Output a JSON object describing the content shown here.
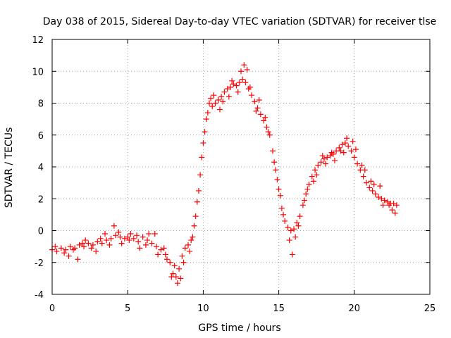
{
  "chart_data": {
    "type": "scatter",
    "title": "Day 038 of 2015, Sidereal Day-to-day VTEC variation (SDTVAR) for receiver tlse",
    "xlabel": "GPS time / hours",
    "ylabel": "SDTVAR / TECUs",
    "xlim": [
      0,
      25
    ],
    "ylim": [
      -4,
      12
    ],
    "xticks": [
      0,
      5,
      10,
      15,
      20,
      25
    ],
    "yticks": [
      -4,
      -2,
      0,
      2,
      4,
      6,
      8,
      10,
      12
    ],
    "grid": true,
    "marker": "+",
    "colors": {
      "marker": "#ff0000",
      "grid": "#a0a0a0",
      "frame": "#000000"
    },
    "series": [
      {
        "name": "tlse",
        "points": [
          [
            0.0,
            -1.2
          ],
          [
            0.3,
            -1.3
          ],
          [
            0.6,
            -1.1
          ],
          [
            0.9,
            -1.2
          ],
          [
            1.2,
            -1.0
          ],
          [
            1.5,
            -1.1
          ],
          [
            1.8,
            -0.9
          ],
          [
            2.1,
            -1.0
          ],
          [
            2.4,
            -0.8
          ],
          [
            2.7,
            -0.9
          ],
          [
            3.0,
            -0.7
          ],
          [
            3.3,
            -0.8
          ],
          [
            3.6,
            -0.6
          ],
          [
            3.9,
            -0.5
          ],
          [
            4.2,
            -0.3
          ],
          [
            4.5,
            -0.4
          ],
          [
            4.8,
            -0.5
          ],
          [
            5.1,
            -0.6
          ],
          [
            5.4,
            -0.5
          ],
          [
            5.7,
            -0.7
          ],
          [
            6.0,
            -0.4
          ],
          [
            6.3,
            -0.6
          ],
          [
            6.6,
            -0.8
          ],
          [
            6.9,
            -1.0
          ],
          [
            7.2,
            -1.2
          ],
          [
            7.5,
            -1.5
          ],
          [
            7.8,
            -2.0
          ],
          [
            8.0,
            -2.7
          ],
          [
            8.2,
            -2.9
          ],
          [
            8.4,
            -2.4
          ],
          [
            8.6,
            -1.6
          ],
          [
            8.8,
            -1.1
          ],
          [
            9.0,
            -0.9
          ],
          [
            9.2,
            -0.6
          ],
          [
            9.4,
            0.3
          ],
          [
            9.6,
            1.8
          ],
          [
            9.8,
            3.5
          ],
          [
            10.0,
            5.5
          ],
          [
            10.2,
            7.0
          ],
          [
            10.4,
            8.0
          ],
          [
            10.6,
            7.8
          ],
          [
            10.8,
            8.0
          ],
          [
            11.0,
            8.2
          ],
          [
            11.2,
            8.4
          ],
          [
            11.4,
            8.7
          ],
          [
            11.6,
            8.9
          ],
          [
            11.8,
            9.0
          ],
          [
            12.0,
            9.2
          ],
          [
            12.2,
            9.1
          ],
          [
            12.4,
            9.3
          ],
          [
            12.6,
            9.5
          ],
          [
            12.8,
            9.3
          ],
          [
            13.0,
            8.9
          ],
          [
            13.2,
            8.5
          ],
          [
            13.4,
            8.1
          ],
          [
            13.6,
            7.7
          ],
          [
            13.8,
            7.3
          ],
          [
            14.0,
            6.9
          ],
          [
            14.2,
            6.5
          ],
          [
            14.4,
            6.0
          ],
          [
            14.6,
            5.0
          ],
          [
            14.8,
            3.8
          ],
          [
            15.0,
            2.6
          ],
          [
            15.2,
            1.4
          ],
          [
            15.4,
            0.6
          ],
          [
            15.6,
            0.2
          ],
          [
            15.8,
            0.0
          ],
          [
            16.0,
            0.1
          ],
          [
            16.2,
            0.5
          ],
          [
            16.4,
            0.9
          ],
          [
            16.6,
            1.6
          ],
          [
            16.8,
            2.3
          ],
          [
            17.0,
            2.9
          ],
          [
            17.2,
            3.4
          ],
          [
            17.4,
            3.8
          ],
          [
            17.6,
            4.1
          ],
          [
            17.8,
            4.3
          ],
          [
            18.0,
            4.5
          ],
          [
            18.2,
            4.6
          ],
          [
            18.4,
            4.7
          ],
          [
            18.6,
            4.8
          ],
          [
            18.8,
            5.0
          ],
          [
            19.0,
            5.2
          ],
          [
            19.2,
            5.4
          ],
          [
            19.4,
            5.5
          ],
          [
            19.6,
            5.3
          ],
          [
            19.8,
            5.0
          ],
          [
            20.0,
            4.6
          ],
          [
            20.2,
            4.2
          ],
          [
            20.4,
            3.8
          ],
          [
            20.6,
            3.4
          ],
          [
            20.8,
            3.0
          ],
          [
            21.0,
            2.7
          ],
          [
            21.2,
            2.5
          ],
          [
            21.4,
            2.3
          ],
          [
            21.6,
            2.1
          ],
          [
            21.8,
            2.0
          ],
          [
            22.0,
            1.9
          ],
          [
            22.2,
            1.8
          ],
          [
            22.4,
            1.7
          ],
          [
            22.6,
            1.7
          ],
          [
            22.8,
            1.6
          ],
          [
            0.2,
            -1.0
          ],
          [
            0.8,
            -1.4
          ],
          [
            1.4,
            -1.2
          ],
          [
            2.0,
            -0.8
          ],
          [
            2.6,
            -1.1
          ],
          [
            3.2,
            -0.5
          ],
          [
            3.8,
            -0.9
          ],
          [
            4.4,
            -0.1
          ],
          [
            5.0,
            -0.4
          ],
          [
            5.6,
            -0.3
          ],
          [
            6.2,
            -0.9
          ],
          [
            6.8,
            -0.2
          ],
          [
            7.4,
            -1.1
          ],
          [
            8.1,
            -2.2
          ],
          [
            8.5,
            -3.0
          ],
          [
            9.1,
            -1.3
          ],
          [
            9.5,
            0.9
          ],
          [
            10.1,
            6.2
          ],
          [
            10.5,
            8.3
          ],
          [
            11.1,
            7.6
          ],
          [
            11.7,
            8.4
          ],
          [
            12.3,
            8.7
          ],
          [
            12.9,
            10.1
          ],
          [
            13.5,
            7.5
          ],
          [
            14.1,
            7.1
          ],
          [
            14.7,
            4.3
          ],
          [
            15.3,
            1.0
          ],
          [
            15.7,
            -0.6
          ],
          [
            16.1,
            -0.4
          ],
          [
            16.9,
            2.6
          ],
          [
            17.5,
            3.5
          ],
          [
            18.1,
            4.2
          ],
          [
            18.7,
            4.4
          ],
          [
            19.3,
            4.9
          ],
          [
            19.9,
            5.6
          ],
          [
            20.5,
            4.1
          ],
          [
            21.1,
            3.1
          ],
          [
            21.7,
            2.8
          ],
          [
            22.3,
            1.6
          ],
          [
            1.1,
            -1.6
          ],
          [
            1.7,
            -1.8
          ],
          [
            2.2,
            -0.6
          ],
          [
            2.9,
            -1.3
          ],
          [
            3.5,
            -0.2
          ],
          [
            4.1,
            0.3
          ],
          [
            4.6,
            -0.8
          ],
          [
            5.2,
            -0.2
          ],
          [
            5.8,
            -1.1
          ],
          [
            6.4,
            -0.2
          ],
          [
            7.0,
            -1.5
          ],
          [
            7.6,
            -1.8
          ],
          [
            7.9,
            -2.9
          ],
          [
            8.3,
            -3.3
          ],
          [
            8.7,
            -2.0
          ],
          [
            9.3,
            -0.4
          ],
          [
            9.7,
            2.5
          ],
          [
            9.9,
            4.6
          ],
          [
            10.3,
            7.4
          ],
          [
            10.7,
            8.5
          ],
          [
            11.3,
            8.1
          ],
          [
            11.9,
            9.4
          ],
          [
            12.5,
            10.0
          ],
          [
            12.7,
            10.4
          ],
          [
            13.1,
            9.0
          ],
          [
            13.7,
            8.2
          ],
          [
            14.3,
            6.2
          ],
          [
            14.9,
            3.2
          ],
          [
            15.1,
            2.2
          ],
          [
            15.9,
            -1.5
          ],
          [
            16.3,
            0.3
          ],
          [
            16.7,
            1.9
          ],
          [
            17.3,
            3.1
          ],
          [
            17.9,
            4.7
          ],
          [
            18.5,
            4.9
          ],
          [
            19.1,
            5.0
          ],
          [
            19.5,
            5.8
          ],
          [
            20.1,
            5.1
          ],
          [
            20.7,
            3.8
          ],
          [
            21.3,
            2.9
          ],
          [
            21.9,
            1.6
          ],
          [
            22.5,
            1.3
          ],
          [
            22.7,
            1.1
          ]
        ]
      }
    ]
  }
}
